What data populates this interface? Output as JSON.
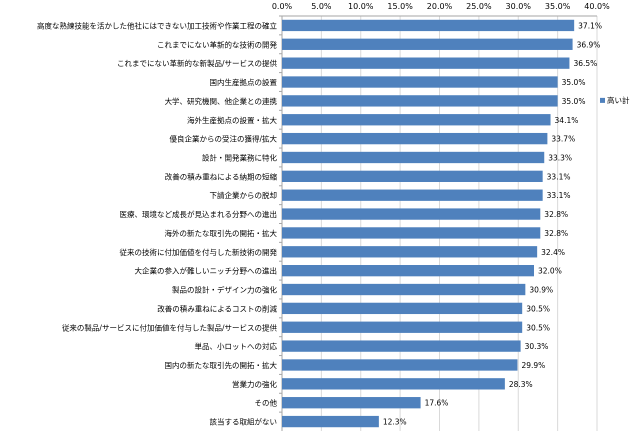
{
  "chart_data": {
    "type": "bar",
    "orientation": "horizontal",
    "xlim": [
      0,
      40
    ],
    "x_ticks": [
      "0.0%",
      "5.0%",
      "10.0%",
      "15.0%",
      "20.0%",
      "25.0%",
      "30.0%",
      "35.0%",
      "40.0%"
    ],
    "x_axis_position": "top",
    "grid": true,
    "legend_position": "right",
    "bar_color": "#4f81bd",
    "series": [
      {
        "name": "高い計",
        "categories": [
          "高度な熟練技能を活かした他社にはできない加工技術や作業工程の確立",
          "これまでにない革新的な技術の開発",
          "これまでにない革新的な新製品/サービスの提供",
          "国内生産拠点の設置",
          "大学、研究機関、他企業との連携",
          "海外生産拠点の設置・拡大",
          "優良企業からの受注の獲得/拡大",
          "設計・開発業務に特化",
          "改善の積み重ねによる納期の短縮",
          "下請企業からの脱却",
          "医療、環境など成長が見込まれる分野への進出",
          "海外の新たな取引先の開拓・拡大",
          "従来の技術に付加価値を付与した新技術の開発",
          "大企業の参入が難しいニッチ分野への進出",
          "製品の設計・デザイン力の強化",
          "改善の積み重ねによるコストの削減",
          "従来の製品/サービスに付加価値を付与した製品/サービスの提供",
          "単品、小ロットへの対応",
          "国内の新たな取引先の開拓・拡大",
          "営業力の強化",
          "その他",
          "該当する取組がない"
        ],
        "values": [
          37.1,
          36.9,
          36.5,
          35.0,
          35.0,
          34.1,
          33.7,
          33.3,
          33.1,
          33.1,
          32.8,
          32.8,
          32.4,
          32.0,
          30.9,
          30.5,
          30.5,
          30.3,
          29.9,
          28.3,
          17.6,
          12.3
        ],
        "labels": [
          "37.1%",
          "36.9%",
          "36.5%",
          "35.0%",
          "35.0%",
          "34.1%",
          "33.7%",
          "33.3%",
          "33.1%",
          "33.1%",
          "32.8%",
          "32.8%",
          "32.4%",
          "32.0%",
          "30.9%",
          "30.5%",
          "30.5%",
          "30.3%",
          "29.9%",
          "28.3%",
          "17.6%",
          "12.3%"
        ]
      }
    ]
  }
}
